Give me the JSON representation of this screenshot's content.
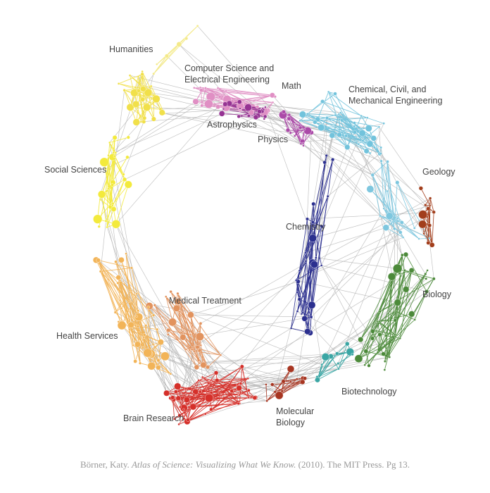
{
  "labels": [
    {
      "lines": [
        "Humanities"
      ]
    },
    {
      "lines": [
        "Computer Science and",
        "Electrical Engineering"
      ]
    },
    {
      "lines": [
        "Math"
      ]
    },
    {
      "lines": [
        "Chemical, Civil, and",
        "Mechanical Engineering"
      ]
    },
    {
      "lines": [
        "Astrophysics"
      ]
    },
    {
      "lines": [
        "Physics"
      ]
    },
    {
      "lines": [
        "Geology"
      ]
    },
    {
      "lines": [
        "Social Sciences"
      ]
    },
    {
      "lines": [
        "Chemistry"
      ]
    },
    {
      "lines": [
        "Biology"
      ]
    },
    {
      "lines": [
        "Medical Treatment"
      ]
    },
    {
      "lines": [
        "Health Services"
      ]
    },
    {
      "lines": [
        "Biotechnology"
      ]
    },
    {
      "lines": [
        "Molecular",
        "Biology"
      ]
    },
    {
      "lines": [
        "Brain Research"
      ]
    }
  ],
  "caption": {
    "author": "Börner, Katy.",
    "book": "Atlas of Science: Visualizing What We Know.",
    "rest": "(2010). The MIT Press. Pg 13."
  }
}
